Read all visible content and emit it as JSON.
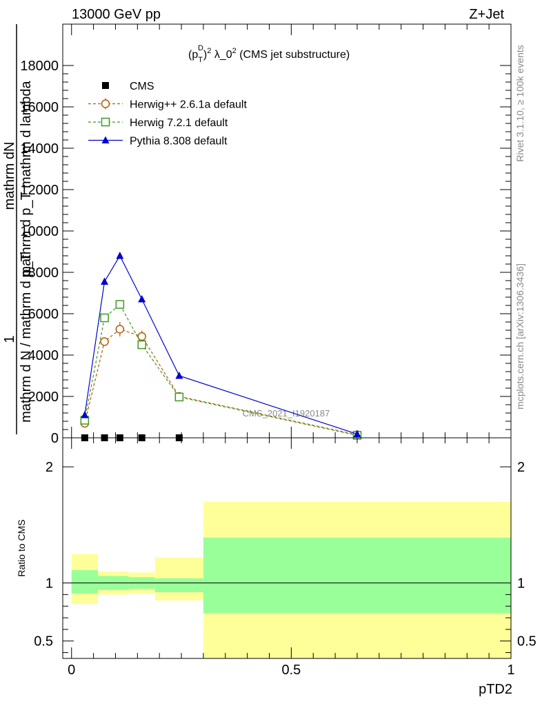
{
  "header": {
    "energy_label": "13000 GeV pp",
    "process_label": "Z+Jet"
  },
  "side_labels": {
    "rivet": "Rivet 3.1.10, ≥ 100k events",
    "mcplots": "mcplots.cern.ch [arXiv:1306.3436]"
  },
  "chart_data": [
    {
      "type": "line",
      "title": "(p_T^D)^2 λ_0^2 (CMS jet substructure)",
      "title_parts": {
        "p": "(p",
        "T": "T",
        "D": "D",
        "close": ")",
        "two": "2",
        "lambda": " λ_0",
        "two2": "2",
        "rest": " (CMS jet substructure)"
      },
      "ylabel_lines": [
        "mathrm dN",
        "mathrm d p_T mathrm d lambda",
        "1",
        "mathrm d N / mathrm d p_T"
      ],
      "analysis_id": "CMS_2021_I1920187",
      "ylim": [
        0,
        20000
      ],
      "yticks": [
        0,
        2000,
        4000,
        6000,
        8000,
        10000,
        12000,
        14000,
        16000,
        18000
      ],
      "ytick_labels": [
        "0",
        "2000",
        "4000",
        "6000",
        "8000",
        "10000",
        "12000",
        "14000",
        "16000",
        "18000"
      ],
      "xlim": [
        -0.02,
        1.0
      ],
      "legend_position": "top-left",
      "series": [
        {
          "name": "CMS",
          "color": "#000000",
          "marker": "square-filled",
          "x": [
            0.03,
            0.075,
            0.11,
            0.16,
            0.245
          ],
          "y": [
            0,
            0,
            0,
            0,
            0
          ]
        },
        {
          "name": "Herwig++ 2.6.1a default",
          "color": "#b35a00",
          "marker": "circle-open",
          "dash": "dashed",
          "x": [
            0.03,
            0.075,
            0.11,
            0.16,
            0.245,
            0.65
          ],
          "y": [
            700,
            4650,
            5250,
            4900,
            2000,
            150
          ],
          "err": [
            0,
            200,
            350,
            280,
            0,
            0
          ]
        },
        {
          "name": "Herwig 7.2.1 default",
          "color": "#3a9a1e",
          "marker": "square-open",
          "dash": "dashed",
          "x": [
            0.03,
            0.075,
            0.11,
            0.16,
            0.245,
            0.65
          ],
          "y": [
            850,
            5800,
            6450,
            4500,
            1970,
            120
          ]
        },
        {
          "name": "Pythia 8.308 default",
          "color": "#0000cc",
          "marker": "triangle-filled",
          "dash": "solid",
          "x": [
            0.03,
            0.075,
            0.11,
            0.16,
            0.245,
            0.65
          ],
          "y": [
            1100,
            7550,
            8800,
            6700,
            3000,
            180
          ]
        }
      ]
    },
    {
      "type": "area",
      "ylabel": "Ratio to CMS",
      "xlabel": "pTD2",
      "ylim": [
        0.35,
        2.25
      ],
      "yticks": [
        0.5,
        1,
        2
      ],
      "ytick_labels": [
        "0.5",
        "1",
        "2"
      ],
      "xlim": [
        -0.02,
        1.0
      ],
      "xticks": [
        0,
        0.5,
        1
      ],
      "xtick_labels": [
        "0",
        "0.5",
        "1"
      ],
      "reference": 1.0,
      "bins": [
        {
          "x0": 0.0,
          "x1": 0.06,
          "green": [
            0.91,
            1.11
          ],
          "yellow": [
            0.82,
            1.25
          ]
        },
        {
          "x0": 0.06,
          "x1": 0.13,
          "green": [
            0.94,
            1.06
          ],
          "yellow": [
            0.9,
            1.1
          ]
        },
        {
          "x0": 0.13,
          "x1": 0.19,
          "green": [
            0.95,
            1.05
          ],
          "yellow": [
            0.91,
            1.09
          ]
        },
        {
          "x0": 0.19,
          "x1": 0.3,
          "green": [
            0.92,
            1.04
          ],
          "yellow": [
            0.85,
            1.22
          ]
        },
        {
          "x0": 0.3,
          "x1": 1.0,
          "green": [
            0.74,
            1.39
          ],
          "yellow": [
            0.35,
            1.7
          ]
        }
      ],
      "colors": {
        "green": "#99ff99",
        "yellow": "#ffff99"
      }
    }
  ]
}
